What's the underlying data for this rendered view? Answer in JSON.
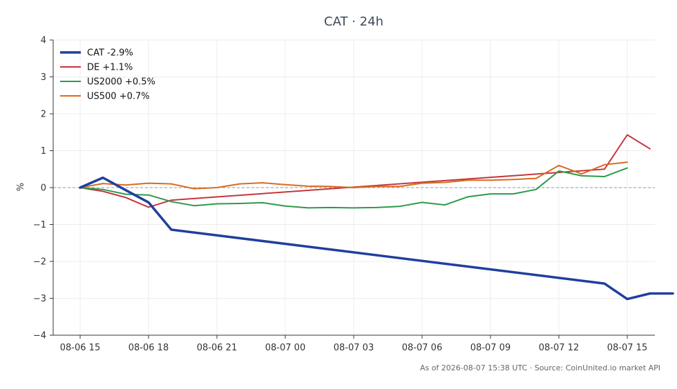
{
  "chart_data": {
    "type": "line",
    "title": "CAT · 24h",
    "xlabel": "",
    "ylabel": "%",
    "ylim": [
      -4,
      4
    ],
    "yticks": [
      4,
      3,
      2,
      1,
      0,
      -1,
      -2,
      -3,
      -4
    ],
    "ytick_labels": [
      "4",
      "3",
      "2",
      "1",
      "0",
      "−1",
      "−2",
      "−3",
      "−4"
    ],
    "x_hours": [
      0,
      1,
      2,
      3,
      4,
      5,
      6,
      7,
      8,
      9,
      10,
      11,
      12,
      13,
      14,
      15,
      16,
      17,
      18,
      19,
      20,
      21,
      22,
      23,
      24
    ],
    "xticks": [
      0,
      3,
      6,
      9,
      12,
      15,
      18,
      21,
      24
    ],
    "xtick_labels": [
      "08-06 15",
      "08-06 18",
      "08-06 21",
      "08-07 00",
      "08-07 03",
      "08-07 06",
      "08-07 09",
      "08-07 12",
      "08-07 15"
    ],
    "grid": true,
    "zero_line": true,
    "legend_position": "top-left",
    "series": [
      {
        "name": "CAT -2.9%",
        "color": "#1f3f9e",
        "width": 3.5,
        "x": [
          0,
          1,
          2,
          3,
          4,
          23,
          24,
          25,
          26
        ],
        "values": [
          0.0,
          0.27,
          -0.07,
          -0.4,
          -1.14,
          -2.6,
          -3.02,
          -2.87,
          -2.87
        ]
      },
      {
        "name": "DE +1.1%",
        "color": "#c4363a",
        "width": 2,
        "x": [
          0,
          1,
          2,
          3,
          4,
          23,
          24,
          25
        ],
        "values": [
          0.0,
          -0.1,
          -0.27,
          -0.53,
          -0.34,
          0.5,
          1.43,
          1.05
        ]
      },
      {
        "name": "US2000 +0.5%",
        "color": "#2a9a4a",
        "width": 2,
        "x": [
          0,
          1,
          2,
          3,
          4,
          5,
          6,
          7,
          8,
          9,
          10,
          11,
          12,
          13,
          14,
          15,
          16,
          17,
          18,
          19,
          20,
          21,
          22,
          23,
          24
        ],
        "values": [
          0.0,
          -0.05,
          -0.18,
          -0.2,
          -0.38,
          -0.49,
          -0.44,
          -0.43,
          -0.41,
          -0.5,
          -0.55,
          -0.54,
          -0.55,
          -0.54,
          -0.51,
          -0.4,
          -0.47,
          -0.25,
          -0.17,
          -0.17,
          -0.05,
          0.45,
          0.32,
          0.3,
          0.53
        ]
      },
      {
        "name": "US500 +0.7%",
        "color": "#d96a1e",
        "width": 2,
        "x": [
          0,
          1,
          2,
          3,
          4,
          5,
          6,
          7,
          8,
          9,
          10,
          11,
          12,
          13,
          14,
          15,
          16,
          17,
          18,
          19,
          20,
          21,
          22,
          23,
          24
        ],
        "values": [
          0.0,
          0.11,
          0.07,
          0.12,
          0.1,
          -0.03,
          0.0,
          0.1,
          0.13,
          0.08,
          0.04,
          0.03,
          0.0,
          0.03,
          0.03,
          0.12,
          0.14,
          0.2,
          0.2,
          0.22,
          0.25,
          0.6,
          0.37,
          0.62,
          0.69
        ]
      }
    ]
  },
  "footer": "As of 2026-08-07 15:38 UTC · Source: CoinUnited.io market API"
}
